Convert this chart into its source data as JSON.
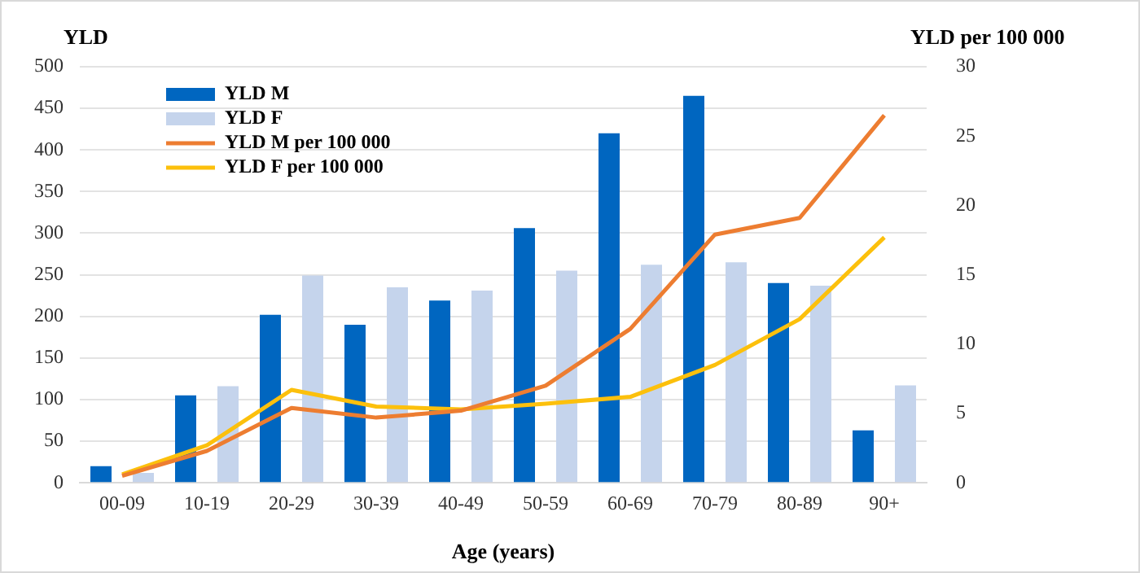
{
  "chart_data": {
    "type": "bar",
    "xlabel": "Age (years)",
    "ylabel": "YLD",
    "y2label": "YLD per 100 000",
    "categories": [
      "00-09",
      "10-19",
      "20-29",
      "30-39",
      "40-49",
      "50-59",
      "60-69",
      "70-79",
      "80-89",
      "90+"
    ],
    "series": [
      {
        "name": "YLD M",
        "color": "#0066c0",
        "values": [
          20,
          105,
          202,
          190,
          219,
          306,
          420,
          465,
          240,
          63
        ]
      },
      {
        "name": "YLD F",
        "color": "#c5d4ec",
        "values": [
          12,
          116,
          249,
          235,
          231,
          255,
          262,
          265,
          237,
          117
        ]
      },
      {
        "name": "YLD M per 100 000",
        "type": "line",
        "axis": "y2",
        "color": "#ed7d31",
        "values": [
          0.5,
          2.3,
          5.4,
          4.7,
          5.2,
          7.0,
          11.1,
          17.9,
          19.1,
          26.5
        ]
      },
      {
        "name": "YLD F per 100 000",
        "type": "line",
        "axis": "y2",
        "color": "#fcc00c",
        "values": [
          0.6,
          2.7,
          6.7,
          5.5,
          5.3,
          5.7,
          6.2,
          8.5,
          11.8,
          17.7
        ]
      }
    ],
    "ylim": [
      0,
      500
    ],
    "yticks": [
      0,
      50,
      100,
      150,
      200,
      250,
      300,
      350,
      400,
      450,
      500
    ],
    "y2lim": [
      0,
      30
    ],
    "y2ticks": [
      0,
      5,
      10,
      15,
      20,
      25,
      30
    ],
    "grid": "y",
    "legend": "top left",
    "marker": "none"
  }
}
